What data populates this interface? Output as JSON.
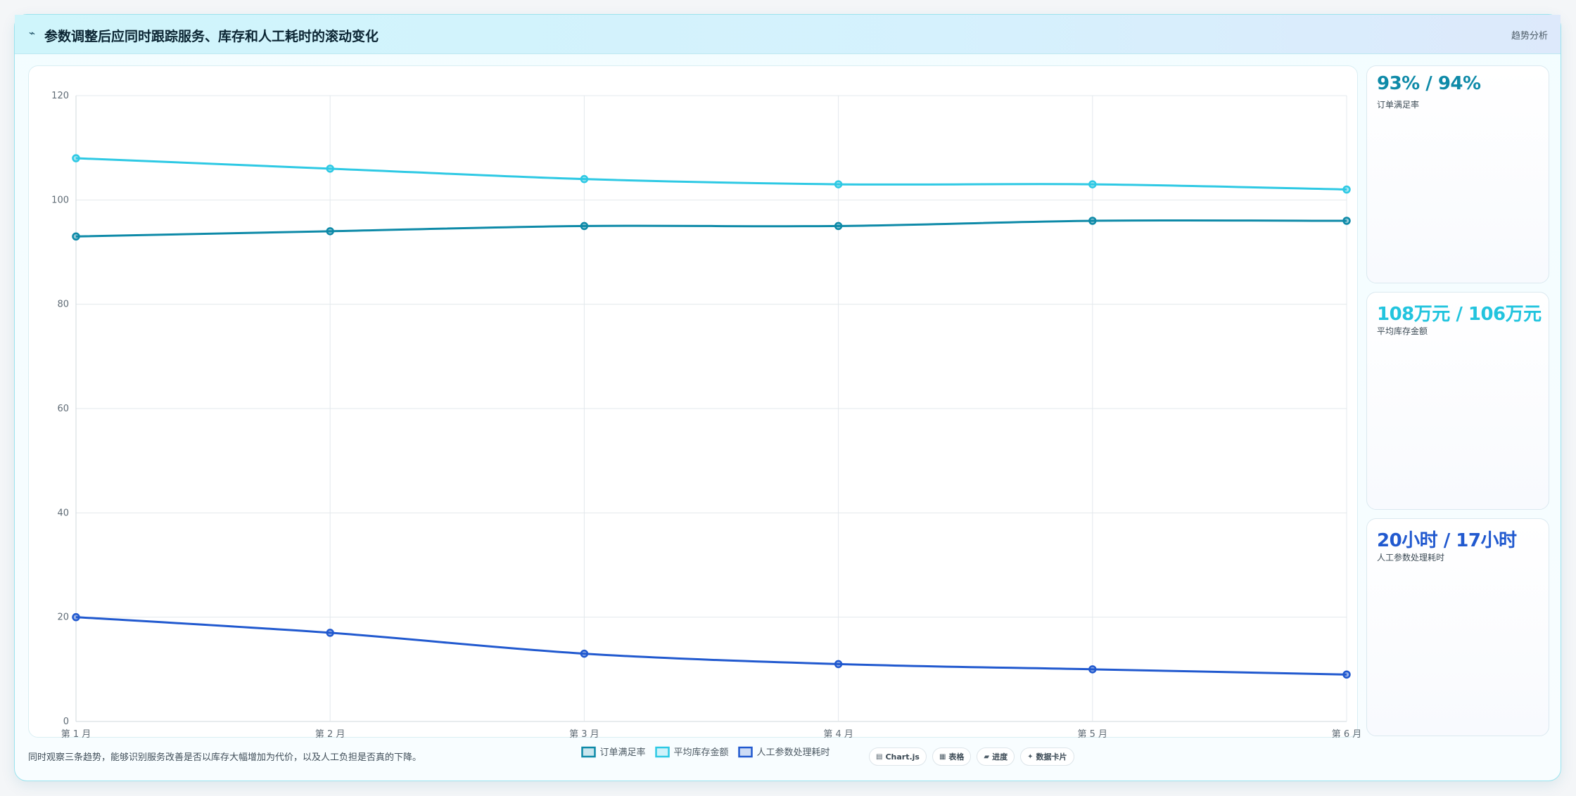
{
  "header": {
    "icon": "trend-icon",
    "title": "参数调整后应同时跟踪服务、库存和人工耗时的滚动变化",
    "tag": "趋势分析"
  },
  "stats": [
    {
      "value": "93% / 94%",
      "label": "订单满足率",
      "color": "#0e8aa8"
    },
    {
      "value": "108万元 / 106万元",
      "label": "平均库存金额",
      "color": "#22c4de"
    },
    {
      "value": "20小时 / 17小时",
      "label": "人工参数处理耗时",
      "color": "#2159cf"
    }
  ],
  "footer": {
    "note": "同时观察三条趋势，能够识别服务改善是否以库存大幅增加为代价，以及人工负担是否真的下降。",
    "chips": [
      {
        "icon": "chart-icon",
        "label": "Chart.js"
      },
      {
        "icon": "table-icon",
        "label": "表格"
      },
      {
        "icon": "progress-icon",
        "label": "进度"
      },
      {
        "icon": "card-icon",
        "label": "数据卡片"
      }
    ]
  },
  "chart_data": {
    "type": "line",
    "categories": [
      "第 1 月",
      "第 2 月",
      "第 3 月",
      "第 4 月",
      "第 5 月",
      "第 6 月"
    ],
    "ylim": [
      0,
      120
    ],
    "yticks": [
      0,
      20,
      40,
      60,
      80,
      100,
      120
    ],
    "grid": true,
    "legend_position": "bottom",
    "series": [
      {
        "name": "订单满足率",
        "color": "#0e8aa8",
        "values": [
          93,
          94,
          95,
          95,
          96,
          96
        ]
      },
      {
        "name": "平均库存金额",
        "color": "#2ec9e4",
        "values": [
          108,
          106,
          104,
          103,
          103,
          102
        ]
      },
      {
        "name": "人工参数处理耗时",
        "color": "#2159cf",
        "values": [
          20,
          17,
          13,
          11,
          10,
          9
        ]
      }
    ]
  }
}
